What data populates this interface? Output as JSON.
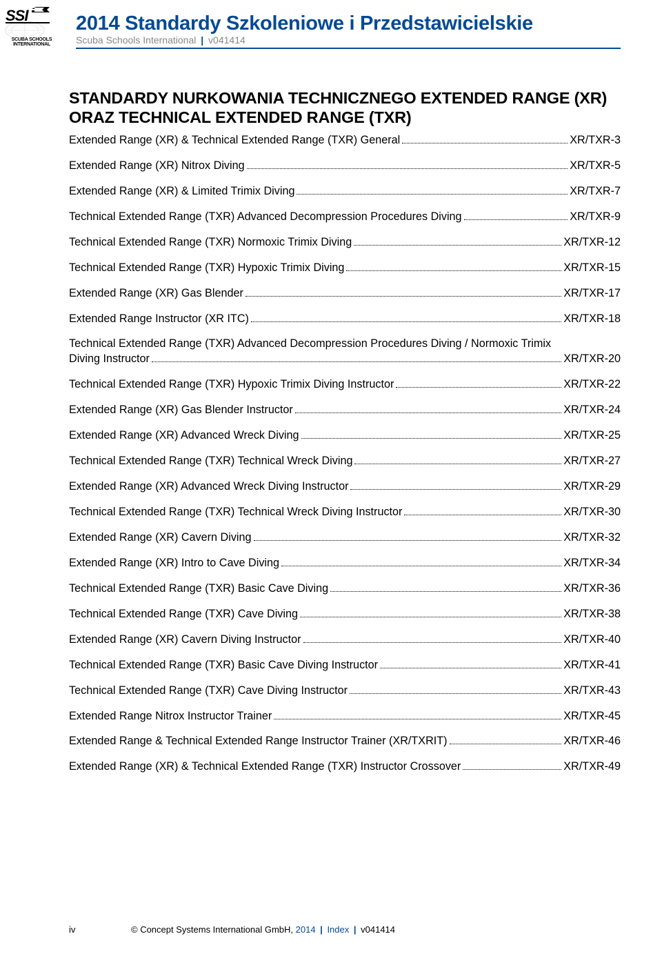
{
  "header": {
    "year": "2014",
    "title_rest": " Standardy Szkoleniowe i Przedstawicielskie",
    "org": "Scuba Schools International",
    "version": "v041414",
    "logo_label_line1": "SCUBA SCHOOLS",
    "logo_label_line2": "INTERNATIONAL"
  },
  "section_heading": "STANDARDY NURKOWANIA TECHNICZNEGO EXTENDED RANGE (XR) ORAZ TECHNICAL EXTENDED RANGE (TXR)",
  "toc": [
    {
      "label": "Extended Range (XR) & Technical Extended Range (TXR) General",
      "page": "XR/TXR-3"
    },
    {
      "label": "Extended Range (XR) Nitrox Diving",
      "page": "XR/TXR-5"
    },
    {
      "label": "Extended Range (XR) & Limited Trimix Diving",
      "page": "XR/TXR-7"
    },
    {
      "label": "Technical Extended Range (TXR) Advanced Decompression Procedures Diving",
      "page": "XR/TXR-9"
    },
    {
      "label": "Technical Extended Range (TXR) Normoxic Trimix Diving",
      "page": "XR/TXR-12"
    },
    {
      "label": "Technical Extended Range (TXR) Hypoxic Trimix Diving",
      "page": "XR/TXR-15"
    },
    {
      "label": "Extended Range (XR) Gas Blender",
      "page": "XR/TXR-17"
    },
    {
      "label": "Extended Range Instructor (XR ITC)",
      "page": "XR/TXR-18"
    },
    {
      "label_line1": "Technical Extended Range (TXR) Advanced Decompression Procedures Diving / Normoxic Trimix",
      "label_line2": "Diving Instructor",
      "page": "XR/TXR-20",
      "multiline": true
    },
    {
      "label": "Technical Extended Range (TXR) Hypoxic Trimix Diving Instructor",
      "page": "XR/TXR-22"
    },
    {
      "label": "Extended Range (XR) Gas Blender Instructor",
      "page": "XR/TXR-24"
    },
    {
      "label": "Extended Range (XR) Advanced Wreck Diving",
      "page": "XR/TXR-25"
    },
    {
      "label": "Technical Extended Range (TXR) Technical Wreck Diving",
      "page": "XR/TXR-27"
    },
    {
      "label": "Extended Range (XR) Advanced Wreck Diving Instructor",
      "page": "XR/TXR-29"
    },
    {
      "label": "Technical Extended Range (TXR) Technical Wreck Diving Instructor",
      "page": "XR/TXR-30"
    },
    {
      "label": "Extended Range (XR) Cavern Diving",
      "page": "XR/TXR-32"
    },
    {
      "label": "Extended Range (XR) Intro to Cave Diving",
      "page": "XR/TXR-34"
    },
    {
      "label": "Technical Extended Range (TXR) Basic Cave Diving",
      "page": "XR/TXR-36"
    },
    {
      "label": "Technical Extended Range (TXR) Cave Diving",
      "page": "XR/TXR-38"
    },
    {
      "label": "Extended Range (XR) Cavern Diving Instructor",
      "page": "XR/TXR-40"
    },
    {
      "label": "Technical Extended Range (TXR) Basic Cave Diving Instructor",
      "page": "XR/TXR-41"
    },
    {
      "label": "Technical Extended Range (TXR) Cave Diving Instructor",
      "page": "XR/TXR-43"
    },
    {
      "label": "Extended Range Nitrox Instructor Trainer",
      "page": "XR/TXR-45"
    },
    {
      "label": "Extended Range & Technical Extended Range Instructor Trainer (XR/TXRIT)",
      "page": "XR/TXR-46"
    },
    {
      "label": "Extended Range (XR) & Technical Extended Range (TXR) Instructor  Crossover",
      "page": "XR/TXR-49"
    }
  ],
  "footer": {
    "page_number": "iv",
    "copyright": "© Concept Systems International GmbH, ",
    "year": "2014",
    "section": "Index",
    "version": "v041414"
  },
  "colors": {
    "brand": "#034a94"
  }
}
